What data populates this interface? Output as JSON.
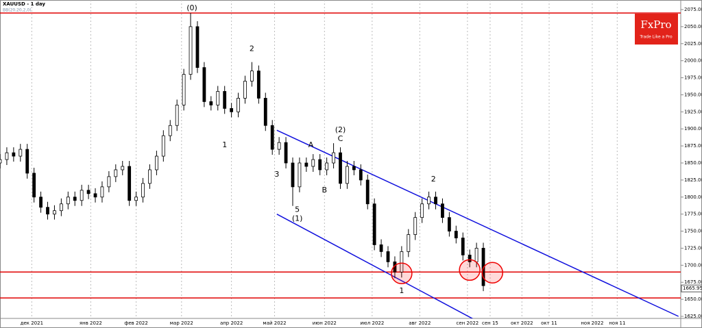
{
  "chart_data": {
    "type": "candlestick",
    "title": "XAUUSD - 1 day",
    "subtitle": "BB(20,20,2,0)",
    "logo": {
      "name": "FxPro",
      "tagline": "Trade Like a Pro"
    },
    "x": [
      0,
      3,
      6,
      9,
      12,
      15,
      18,
      21,
      24,
      27,
      30,
      33,
      36,
      39,
      42,
      45,
      48,
      51,
      54,
      57,
      60,
      63,
      66,
      69,
      72,
      75,
      78,
      81,
      84,
      87,
      90,
      93,
      96,
      99,
      102,
      105,
      108,
      111,
      114,
      117,
      120,
      123,
      126,
      129,
      132,
      135,
      138,
      141,
      144,
      147,
      150,
      153,
      156,
      159,
      162,
      165,
      168,
      171,
      174,
      177,
      180,
      183,
      186,
      189,
      192,
      195,
      198,
      201,
      204,
      207,
      210,
      213
    ],
    "open": [
      1850,
      1855,
      1865,
      1860,
      1870,
      1835,
      1800,
      1785,
      1775,
      1780,
      1790,
      1800,
      1795,
      1810,
      1805,
      1800,
      1815,
      1830,
      1840,
      1845,
      1795,
      1800,
      1820,
      1840,
      1860,
      1890,
      1905,
      1935,
      1980,
      2050,
      1990,
      1940,
      1935,
      1955,
      1930,
      1925,
      1945,
      1970,
      1985,
      1945,
      1905,
      1870,
      1880,
      1850,
      1815,
      1850,
      1845,
      1855,
      1840,
      1850,
      1865,
      1820,
      1845,
      1840,
      1825,
      1790,
      1730,
      1720,
      1705,
      1690,
      1720,
      1745,
      1770,
      1790,
      1800,
      1790,
      1770,
      1750,
      1740,
      1715,
      1705,
      1725
    ],
    "high": [
      1863,
      1873,
      1873,
      1878,
      1878,
      1843,
      1808,
      1793,
      1788,
      1798,
      1808,
      1808,
      1818,
      1818,
      1813,
      1823,
      1838,
      1848,
      1853,
      1853,
      1808,
      1828,
      1848,
      1868,
      1898,
      1913,
      1943,
      1988,
      2070,
      2058,
      1998,
      1948,
      1963,
      1963,
      1938,
      1953,
      1978,
      1998,
      1993,
      1953,
      1913,
      1888,
      1888,
      1858,
      1858,
      1858,
      1863,
      1863,
      1858,
      1879,
      1873,
      1853,
      1853,
      1848,
      1833,
      1798,
      1738,
      1728,
      1713,
      1728,
      1753,
      1778,
      1798,
      1808,
      1808,
      1798,
      1778,
      1758,
      1748,
      1723,
      1733,
      1733
    ],
    "low": [
      1842,
      1847,
      1852,
      1852,
      1827,
      1792,
      1777,
      1767,
      1767,
      1772,
      1782,
      1787,
      1787,
      1797,
      1792,
      1792,
      1807,
      1822,
      1832,
      1787,
      1787,
      1792,
      1812,
      1832,
      1852,
      1882,
      1897,
      1927,
      1972,
      1982,
      1932,
      1927,
      1927,
      1922,
      1917,
      1917,
      1937,
      1962,
      1937,
      1897,
      1862,
      1862,
      1842,
      1787,
      1807,
      1837,
      1837,
      1832,
      1832,
      1842,
      1812,
      1812,
      1832,
      1817,
      1782,
      1722,
      1712,
      1697,
      1681,
      1682,
      1712,
      1737,
      1762,
      1782,
      1782,
      1762,
      1742,
      1732,
      1707,
      1697,
      1697,
      1662
    ],
    "close": [
      1855,
      1865,
      1860,
      1870,
      1835,
      1800,
      1785,
      1775,
      1780,
      1790,
      1800,
      1795,
      1810,
      1805,
      1800,
      1815,
      1830,
      1840,
      1845,
      1795,
      1800,
      1820,
      1840,
      1860,
      1890,
      1905,
      1935,
      1980,
      2050,
      1990,
      1940,
      1935,
      1955,
      1930,
      1925,
      1945,
      1970,
      1985,
      1945,
      1905,
      1870,
      1880,
      1850,
      1815,
      1850,
      1845,
      1855,
      1840,
      1850,
      1865,
      1820,
      1845,
      1840,
      1825,
      1790,
      1730,
      1720,
      1705,
      1690,
      1720,
      1745,
      1770,
      1790,
      1800,
      1790,
      1770,
      1750,
      1740,
      1715,
      1705,
      1725,
      1670
    ],
    "last_price": 1665.95,
    "levels": [
      2070,
      1690,
      1652
    ],
    "level_color": "#e00000",
    "trend_lines": [
      {
        "points": [
          [
            122,
            1898
          ],
          [
            299,
            1625
          ]
        ]
      },
      {
        "points": [
          [
            122,
            1775
          ],
          [
            212,
            1615
          ]
        ]
      }
    ],
    "trend_color": "#1010dd",
    "circles": [
      [
        177,
        1688
      ],
      [
        207,
        1693
      ],
      [
        217,
        1689
      ]
    ],
    "annotations": [
      {
        "text": "(0)",
        "x": 84.6,
        "y": 2077
      },
      {
        "text": "2",
        "x": 111,
        "y": 2017
      },
      {
        "text": "(2)",
        "x": 150,
        "y": 1898
      },
      {
        "text": "C",
        "x": 150,
        "y": 1885
      },
      {
        "text": "A",
        "x": 137,
        "y": 1876
      },
      {
        "text": "B",
        "x": 143,
        "y": 1810
      },
      {
        "text": "1",
        "x": 99,
        "y": 1876
      },
      {
        "text": "3",
        "x": 122,
        "y": 1833
      },
      {
        "text": "5",
        "x": 131,
        "y": 1781
      },
      {
        "text": "(1)",
        "x": 131,
        "y": 1768
      },
      {
        "text": "1",
        "x": 177,
        "y": 1662
      },
      {
        "text": "2",
        "x": 191,
        "y": 1826
      }
    ],
    "xlim": [
      0,
      300
    ],
    "ylim": [
      1625,
      2075
    ],
    "xticks": [
      {
        "value": 14,
        "label": "дек 2021"
      },
      {
        "value": 40,
        "label": "янв 2022"
      },
      {
        "value": 60,
        "label": "фев 2022"
      },
      {
        "value": 80,
        "label": "мар 2022"
      },
      {
        "value": 102,
        "label": "апр 2022"
      },
      {
        "value": 121,
        "label": "май 2022"
      },
      {
        "value": 143,
        "label": "июн 2022"
      },
      {
        "value": 164,
        "label": "июл 2022"
      },
      {
        "value": 185,
        "label": "авг 2022"
      },
      {
        "value": 206,
        "label": "сен 2022"
      },
      {
        "value": 216,
        "label": "сен 15"
      },
      {
        "value": 230,
        "label": "окт 2022"
      },
      {
        "value": 242,
        "label": "окт 11"
      },
      {
        "value": 261,
        "label": "ноя 2022"
      },
      {
        "value": 272,
        "label": "ноя 11"
      }
    ],
    "yticks": [
      {
        "value": 2075,
        "label": "2075.00"
      },
      {
        "value": 2050,
        "label": "2050.00"
      },
      {
        "value": 2025,
        "label": "2025.00"
      },
      {
        "value": 2000,
        "label": "2000.00"
      },
      {
        "value": 1975,
        "label": "1975.00"
      },
      {
        "value": 1950,
        "label": "1950.00"
      },
      {
        "value": 1925,
        "label": "1925.00"
      },
      {
        "value": 1900,
        "label": "1900.00"
      },
      {
        "value": 1875,
        "label": "1875.00"
      },
      {
        "value": 1850,
        "label": "1850.00"
      },
      {
        "value": 1825,
        "label": "1825.00"
      },
      {
        "value": 1800,
        "label": "1800.00"
      },
      {
        "value": 1775,
        "label": "1775.00"
      },
      {
        "value": 1750,
        "label": "1750.00"
      },
      {
        "value": 1725,
        "label": "1725.00"
      },
      {
        "value": 1700,
        "label": "1700.00"
      },
      {
        "value": 1675,
        "label": "1675.00"
      },
      {
        "value": 1650,
        "label": "1650.00"
      },
      {
        "value": 1625,
        "label": "1625.00"
      }
    ],
    "grid": true
  }
}
